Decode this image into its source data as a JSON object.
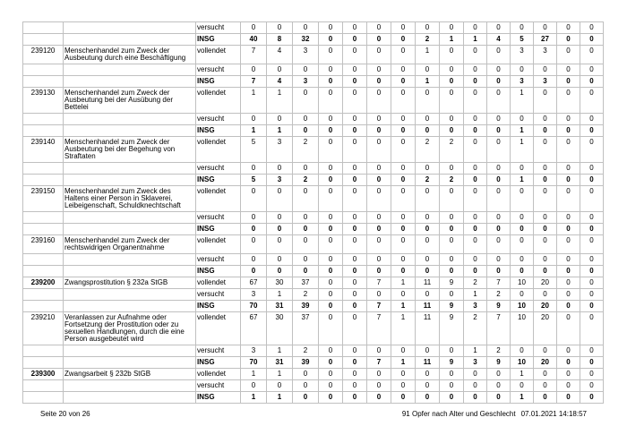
{
  "table": {
    "rows": [
      {
        "code": "",
        "code_bold": false,
        "desc": "",
        "status": "versucht",
        "bold": false,
        "values": [
          0,
          0,
          0,
          0,
          0,
          0,
          0,
          0,
          0,
          0,
          0,
          0,
          0,
          0,
          0
        ]
      },
      {
        "code": "",
        "code_bold": false,
        "desc": "",
        "status": "INSG",
        "bold": true,
        "values": [
          40,
          8,
          32,
          0,
          0,
          0,
          0,
          2,
          1,
          1,
          4,
          5,
          27,
          0,
          0
        ]
      },
      {
        "code": "239120",
        "code_bold": false,
        "desc": "Menschenhandel zum Zweck der\nAusbeutung durch eine Beschäftigung",
        "status": "vollendet",
        "bold": false,
        "values": [
          7,
          4,
          3,
          0,
          0,
          0,
          0,
          1,
          0,
          0,
          0,
          3,
          3,
          0,
          0
        ]
      },
      {
        "code": "",
        "code_bold": false,
        "desc": "",
        "status": "versucht",
        "bold": false,
        "values": [
          0,
          0,
          0,
          0,
          0,
          0,
          0,
          0,
          0,
          0,
          0,
          0,
          0,
          0,
          0
        ]
      },
      {
        "code": "",
        "code_bold": false,
        "desc": "",
        "status": "INSG",
        "bold": true,
        "values": [
          7,
          4,
          3,
          0,
          0,
          0,
          0,
          1,
          0,
          0,
          0,
          3,
          3,
          0,
          0
        ]
      },
      {
        "code": "239130",
        "code_bold": false,
        "desc": "Menschenhandel zum Zweck der\nAusbeutung bei der Ausübung der\nBettelei",
        "status": "vollendet",
        "bold": false,
        "values": [
          1,
          1,
          0,
          0,
          0,
          0,
          0,
          0,
          0,
          0,
          0,
          1,
          0,
          0,
          0
        ]
      },
      {
        "code": "",
        "code_bold": false,
        "desc": "",
        "status": "versucht",
        "bold": false,
        "values": [
          0,
          0,
          0,
          0,
          0,
          0,
          0,
          0,
          0,
          0,
          0,
          0,
          0,
          0,
          0
        ]
      },
      {
        "code": "",
        "code_bold": false,
        "desc": "",
        "status": "INSG",
        "bold": true,
        "values": [
          1,
          1,
          0,
          0,
          0,
          0,
          0,
          0,
          0,
          0,
          0,
          1,
          0,
          0,
          0
        ]
      },
      {
        "code": "239140",
        "code_bold": false,
        "desc": "Menschenhandel zum Zweck der\nAusbeutung bei der Begehung von\nStraftaten",
        "status": "vollendet",
        "bold": false,
        "values": [
          5,
          3,
          2,
          0,
          0,
          0,
          0,
          2,
          2,
          0,
          0,
          1,
          0,
          0,
          0
        ]
      },
      {
        "code": "",
        "code_bold": false,
        "desc": "",
        "status": "versucht",
        "bold": false,
        "values": [
          0,
          0,
          0,
          0,
          0,
          0,
          0,
          0,
          0,
          0,
          0,
          0,
          0,
          0,
          0
        ]
      },
      {
        "code": "",
        "code_bold": false,
        "desc": "",
        "status": "INSG",
        "bold": true,
        "values": [
          5,
          3,
          2,
          0,
          0,
          0,
          0,
          2,
          2,
          0,
          0,
          1,
          0,
          0,
          0
        ]
      },
      {
        "code": "239150",
        "code_bold": false,
        "desc": "Menschenhandel zum Zweck des\nHaltens einer Person in Sklaverei,\nLeibeigenschaft, Schuldknechtschaft",
        "status": "vollendet",
        "bold": false,
        "values": [
          0,
          0,
          0,
          0,
          0,
          0,
          0,
          0,
          0,
          0,
          0,
          0,
          0,
          0,
          0
        ]
      },
      {
        "code": "",
        "code_bold": false,
        "desc": "",
        "status": "versucht",
        "bold": false,
        "values": [
          0,
          0,
          0,
          0,
          0,
          0,
          0,
          0,
          0,
          0,
          0,
          0,
          0,
          0,
          0
        ]
      },
      {
        "code": "",
        "code_bold": false,
        "desc": "",
        "status": "INSG",
        "bold": true,
        "values": [
          0,
          0,
          0,
          0,
          0,
          0,
          0,
          0,
          0,
          0,
          0,
          0,
          0,
          0,
          0
        ]
      },
      {
        "code": "239160",
        "code_bold": false,
        "desc": "Menschenhandel zum Zweck der\nrechtswidrigen Organentnahme",
        "status": "vollendet",
        "bold": false,
        "values": [
          0,
          0,
          0,
          0,
          0,
          0,
          0,
          0,
          0,
          0,
          0,
          0,
          0,
          0,
          0
        ]
      },
      {
        "code": "",
        "code_bold": false,
        "desc": "",
        "status": "versucht",
        "bold": false,
        "values": [
          0,
          0,
          0,
          0,
          0,
          0,
          0,
          0,
          0,
          0,
          0,
          0,
          0,
          0,
          0
        ]
      },
      {
        "code": "",
        "code_bold": false,
        "desc": "",
        "status": "INSG",
        "bold": true,
        "values": [
          0,
          0,
          0,
          0,
          0,
          0,
          0,
          0,
          0,
          0,
          0,
          0,
          0,
          0,
          0
        ]
      },
      {
        "code": "239200",
        "code_bold": true,
        "desc": "Zwangsprostitution § 232a StGB",
        "status": "vollendet",
        "bold": false,
        "values": [
          67,
          30,
          37,
          0,
          0,
          7,
          1,
          11,
          9,
          2,
          7,
          10,
          20,
          0,
          0
        ]
      },
      {
        "code": "",
        "code_bold": false,
        "desc": "",
        "status": "versucht",
        "bold": false,
        "values": [
          3,
          1,
          2,
          0,
          0,
          0,
          0,
          0,
          0,
          1,
          2,
          0,
          0,
          0,
          0
        ]
      },
      {
        "code": "",
        "code_bold": false,
        "desc": "",
        "status": "INSG",
        "bold": true,
        "values": [
          70,
          31,
          39,
          0,
          0,
          7,
          1,
          11,
          9,
          3,
          9,
          10,
          20,
          0,
          0
        ]
      },
      {
        "code": "239210",
        "code_bold": false,
        "desc": "Veranlassen zur Aufnahme oder\nFortsetzung der Prostitution oder zu\nsexuellen Handlungen, durch die eine\nPerson ausgebeutet wird",
        "status": "vollendet",
        "bold": false,
        "values": [
          67,
          30,
          37,
          0,
          0,
          7,
          1,
          11,
          9,
          2,
          7,
          10,
          20,
          0,
          0
        ]
      },
      {
        "code": "",
        "code_bold": false,
        "desc": "",
        "status": "versucht",
        "bold": false,
        "values": [
          3,
          1,
          2,
          0,
          0,
          0,
          0,
          0,
          0,
          1,
          2,
          0,
          0,
          0,
          0
        ]
      },
      {
        "code": "",
        "code_bold": false,
        "desc": "",
        "status": "INSG",
        "bold": true,
        "values": [
          70,
          31,
          39,
          0,
          0,
          7,
          1,
          11,
          9,
          3,
          9,
          10,
          20,
          0,
          0
        ]
      },
      {
        "code": "239300",
        "code_bold": true,
        "desc": "Zwangsarbeit § 232b StGB",
        "status": "vollendet",
        "bold": false,
        "values": [
          1,
          1,
          0,
          0,
          0,
          0,
          0,
          0,
          0,
          0,
          0,
          1,
          0,
          0,
          0
        ]
      },
      {
        "code": "",
        "code_bold": false,
        "desc": "",
        "status": "versucht",
        "bold": false,
        "values": [
          0,
          0,
          0,
          0,
          0,
          0,
          0,
          0,
          0,
          0,
          0,
          0,
          0,
          0,
          0
        ]
      },
      {
        "code": "",
        "code_bold": false,
        "desc": "",
        "status": "INSG",
        "bold": true,
        "values": [
          1,
          1,
          0,
          0,
          0,
          0,
          0,
          0,
          0,
          0,
          0,
          1,
          0,
          0,
          0
        ]
      }
    ]
  },
  "footer": {
    "page_info": "Seite 20 von 26",
    "report_title": "91 Opfer nach Alter und Geschlecht",
    "generated": "07.01.2021 14:18:57"
  },
  "colors": {
    "border": "#c0c0c0",
    "text": "#000000",
    "background": "#ffffff"
  }
}
